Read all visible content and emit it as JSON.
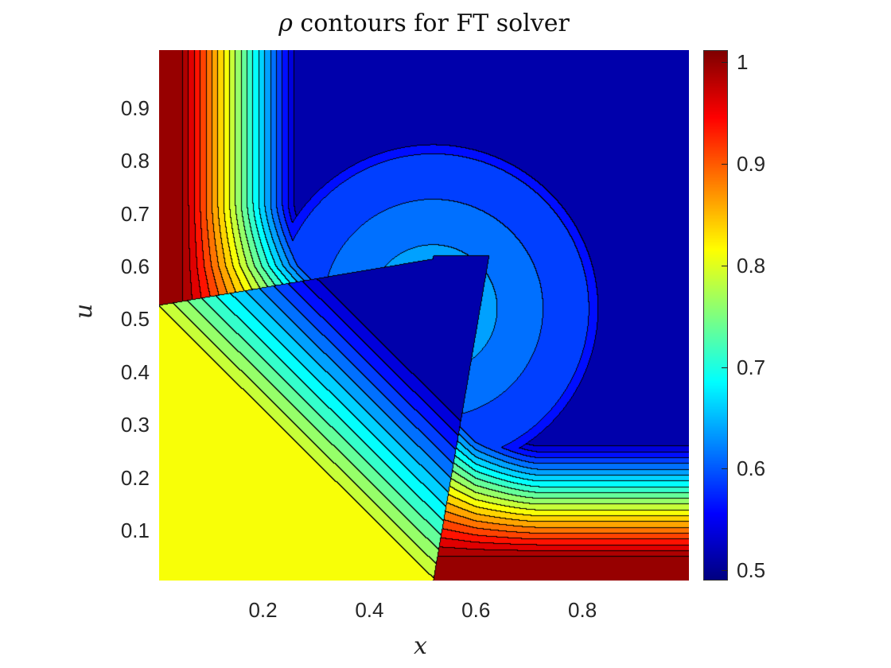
{
  "chart_data": {
    "type": "contour",
    "title": "ρ contours for FT solver",
    "title_symbol": "ρ",
    "title_text": "contours for FT solver",
    "xlabel": "x",
    "ylabel": "u",
    "xlim": [
      0.005,
      1.0
    ],
    "ylim": [
      0.005,
      1.01
    ],
    "xticks": [
      "0.2",
      "0.4",
      "0.6",
      "0.8"
    ],
    "yticks": [
      "0.1",
      "0.2",
      "0.3",
      "0.4",
      "0.5",
      "0.6",
      "0.7",
      "0.8",
      "0.9"
    ],
    "colormap": "jet",
    "clim": [
      0.49,
      1.012
    ],
    "colorbar_ticks": [
      "0.5",
      "0.6",
      "0.7",
      "0.8",
      "0.9",
      "1"
    ],
    "contour_levels": {
      "start": 0.5,
      "end": 1.0,
      "step": 0.025
    },
    "regions": [
      {
        "region": "top-left strip",
        "value": 1.0
      },
      {
        "region": "bottom-left quadrant",
        "value": 0.8
      },
      {
        "region": "bottom-right strip",
        "value": 1.0
      },
      {
        "region": "top-right quadrant",
        "value": 0.5
      },
      {
        "region": "central bubble",
        "value": 0.6
      },
      {
        "region": "central wedge",
        "value": 0.5
      }
    ]
  }
}
